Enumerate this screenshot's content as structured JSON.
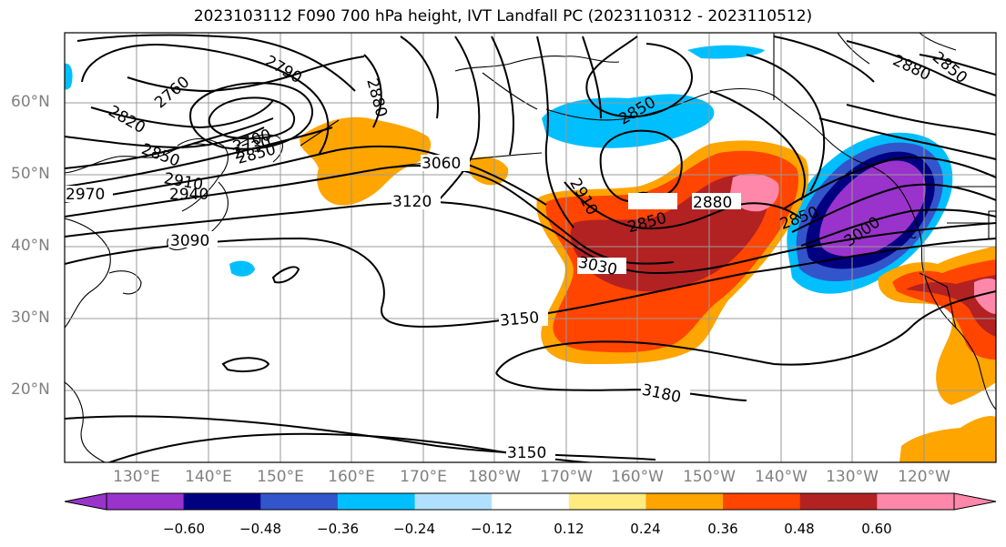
{
  "title": "2023103112 F090 700 hPa height, IVT Landfall PC (2023110312 - 2023110512)",
  "lat_labels": [
    "60°N",
    "50°N",
    "40°N",
    "30°N",
    "20°N"
  ],
  "lon_labels": [
    "130°E",
    "140°E",
    "150°E",
    "160°E",
    "170°E",
    "180°W",
    "170°W",
    "160°W",
    "150°W",
    "140°W",
    "130°W",
    "120°W"
  ],
  "contour_labels": [
    "2760",
    "2790",
    "2820",
    "2850",
    "2970",
    "2910",
    "2940",
    "3090",
    "2700",
    "2730",
    "2880",
    "3060",
    "3120",
    "2850",
    "2910",
    "2850",
    "2880",
    "2850",
    "3000",
    "3030",
    "3150",
    "3180",
    "3150",
    "2850",
    "2880",
    "2850"
  ],
  "colorbar": {
    "ticks": [
      "−0.60",
      "−0.48",
      "−0.36",
      "−0.24",
      "−0.12",
      "0.12",
      "0.24",
      "0.36",
      "0.48",
      "0.60"
    ],
    "colors": [
      "#9933cc",
      "#000080",
      "#3355cc",
      "#00bfff",
      "#b0e0ff",
      "#ffffff",
      "#ffeb80",
      "#ffa500",
      "#ff4500",
      "#b22222",
      "#ff88aa"
    ],
    "min_arrow_color": "#9933cc",
    "max_arrow_color": "#ff88aa"
  }
}
